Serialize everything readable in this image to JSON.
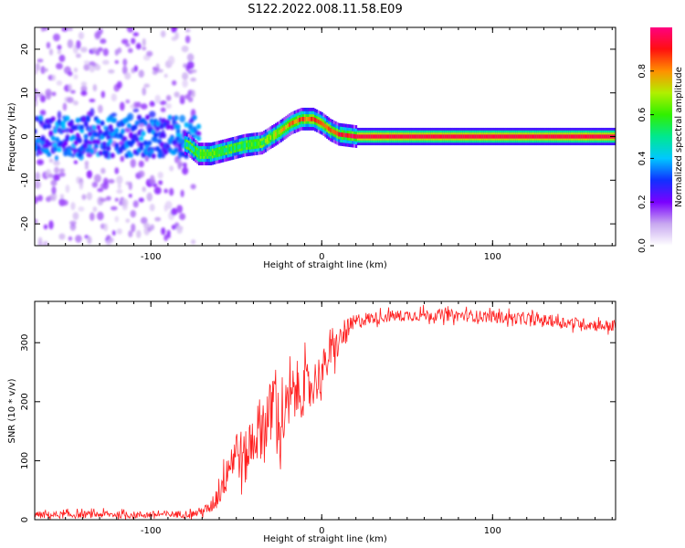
{
  "title": "S122.2022.008.11.58.E09",
  "chart_data": [
    {
      "type": "heatmap",
      "xlabel": "Height of straight line (km)",
      "ylabel": "Frequency (Hz)",
      "xlim": [
        -168,
        172
      ],
      "ylim": [
        -25,
        25
      ],
      "xticks": [
        -100,
        0,
        100
      ],
      "yticks": [
        -20,
        -10,
        0,
        10,
        20
      ],
      "colorbar": {
        "label": "Normalized spectral amplitude",
        "range": [
          0.0,
          1.0
        ],
        "ticks": [
          "0.0",
          "0.2",
          "0.4",
          "0.6",
          "0.8"
        ],
        "colors": [
          "#ffffff",
          "#c8a8f0",
          "#7a00ff",
          "#1030ff",
          "#00c8ff",
          "#00e890",
          "#30f000",
          "#b0f000",
          "#ff9000",
          "#ff1010",
          "#ff0080"
        ]
      },
      "ridge": {
        "x": [
          -168,
          -150,
          -130,
          -110,
          -90,
          -78,
          -72,
          -65,
          -55,
          -45,
          -35,
          -25,
          -18,
          -12,
          -5,
          0,
          5,
          10,
          20,
          40,
          80,
          120,
          160,
          168
        ],
        "freq_hz": [
          0,
          0,
          0,
          0,
          0,
          -2,
          -4,
          -4,
          -3,
          -2,
          -1.5,
          1,
          3,
          4,
          4,
          3,
          1.5,
          0.5,
          0,
          0,
          0,
          0,
          0,
          0
        ],
        "amplitude": [
          0.3,
          0.3,
          0.3,
          0.3,
          0.3,
          0.45,
          0.55,
          0.6,
          0.55,
          0.55,
          0.6,
          0.7,
          0.8,
          0.85,
          0.85,
          0.9,
          0.85,
          0.9,
          0.95,
          0.95,
          0.95,
          0.95,
          0.95,
          0.95
        ]
      },
      "grid": false
    },
    {
      "type": "line",
      "xlabel": "Height of straight line (km)",
      "ylabel": "SNR (10 * v/v)",
      "xlim": [
        -168,
        172
      ],
      "ylim": [
        0,
        370
      ],
      "xticks": [
        -100,
        0,
        100
      ],
      "yticks": [
        0,
        100,
        200,
        300
      ],
      "color": "#ff2020",
      "series": [
        {
          "x": [
            -168,
            -150,
            -130,
            -110,
            -90,
            -75,
            -65,
            -60,
            -55,
            -50,
            -45,
            -40,
            -35,
            -30,
            -27,
            -25,
            -20,
            -15,
            -10,
            -5,
            0,
            5,
            10,
            15,
            20,
            25,
            30,
            40,
            50,
            60,
            70,
            80,
            90,
            100,
            110,
            120,
            130,
            140,
            150,
            160,
            172
          ],
          "y": [
            8,
            8,
            9,
            8,
            9,
            10,
            20,
            50,
            90,
            120,
            100,
            140,
            160,
            180,
            220,
            150,
            190,
            220,
            220,
            230,
            250,
            280,
            300,
            320,
            335,
            340,
            342,
            345,
            346,
            347,
            347,
            346,
            345,
            344,
            342,
            340,
            338,
            335,
            333,
            330,
            328
          ],
          "noise": [
            6,
            6,
            6,
            6,
            6,
            6,
            10,
            30,
            40,
            45,
            45,
            50,
            55,
            55,
            60,
            55,
            50,
            50,
            45,
            40,
            35,
            30,
            25,
            20,
            15,
            12,
            10,
            10,
            10,
            10,
            10,
            10,
            10,
            10,
            10,
            10,
            10,
            10,
            10,
            10,
            10
          ]
        }
      ],
      "grid": false
    }
  ]
}
